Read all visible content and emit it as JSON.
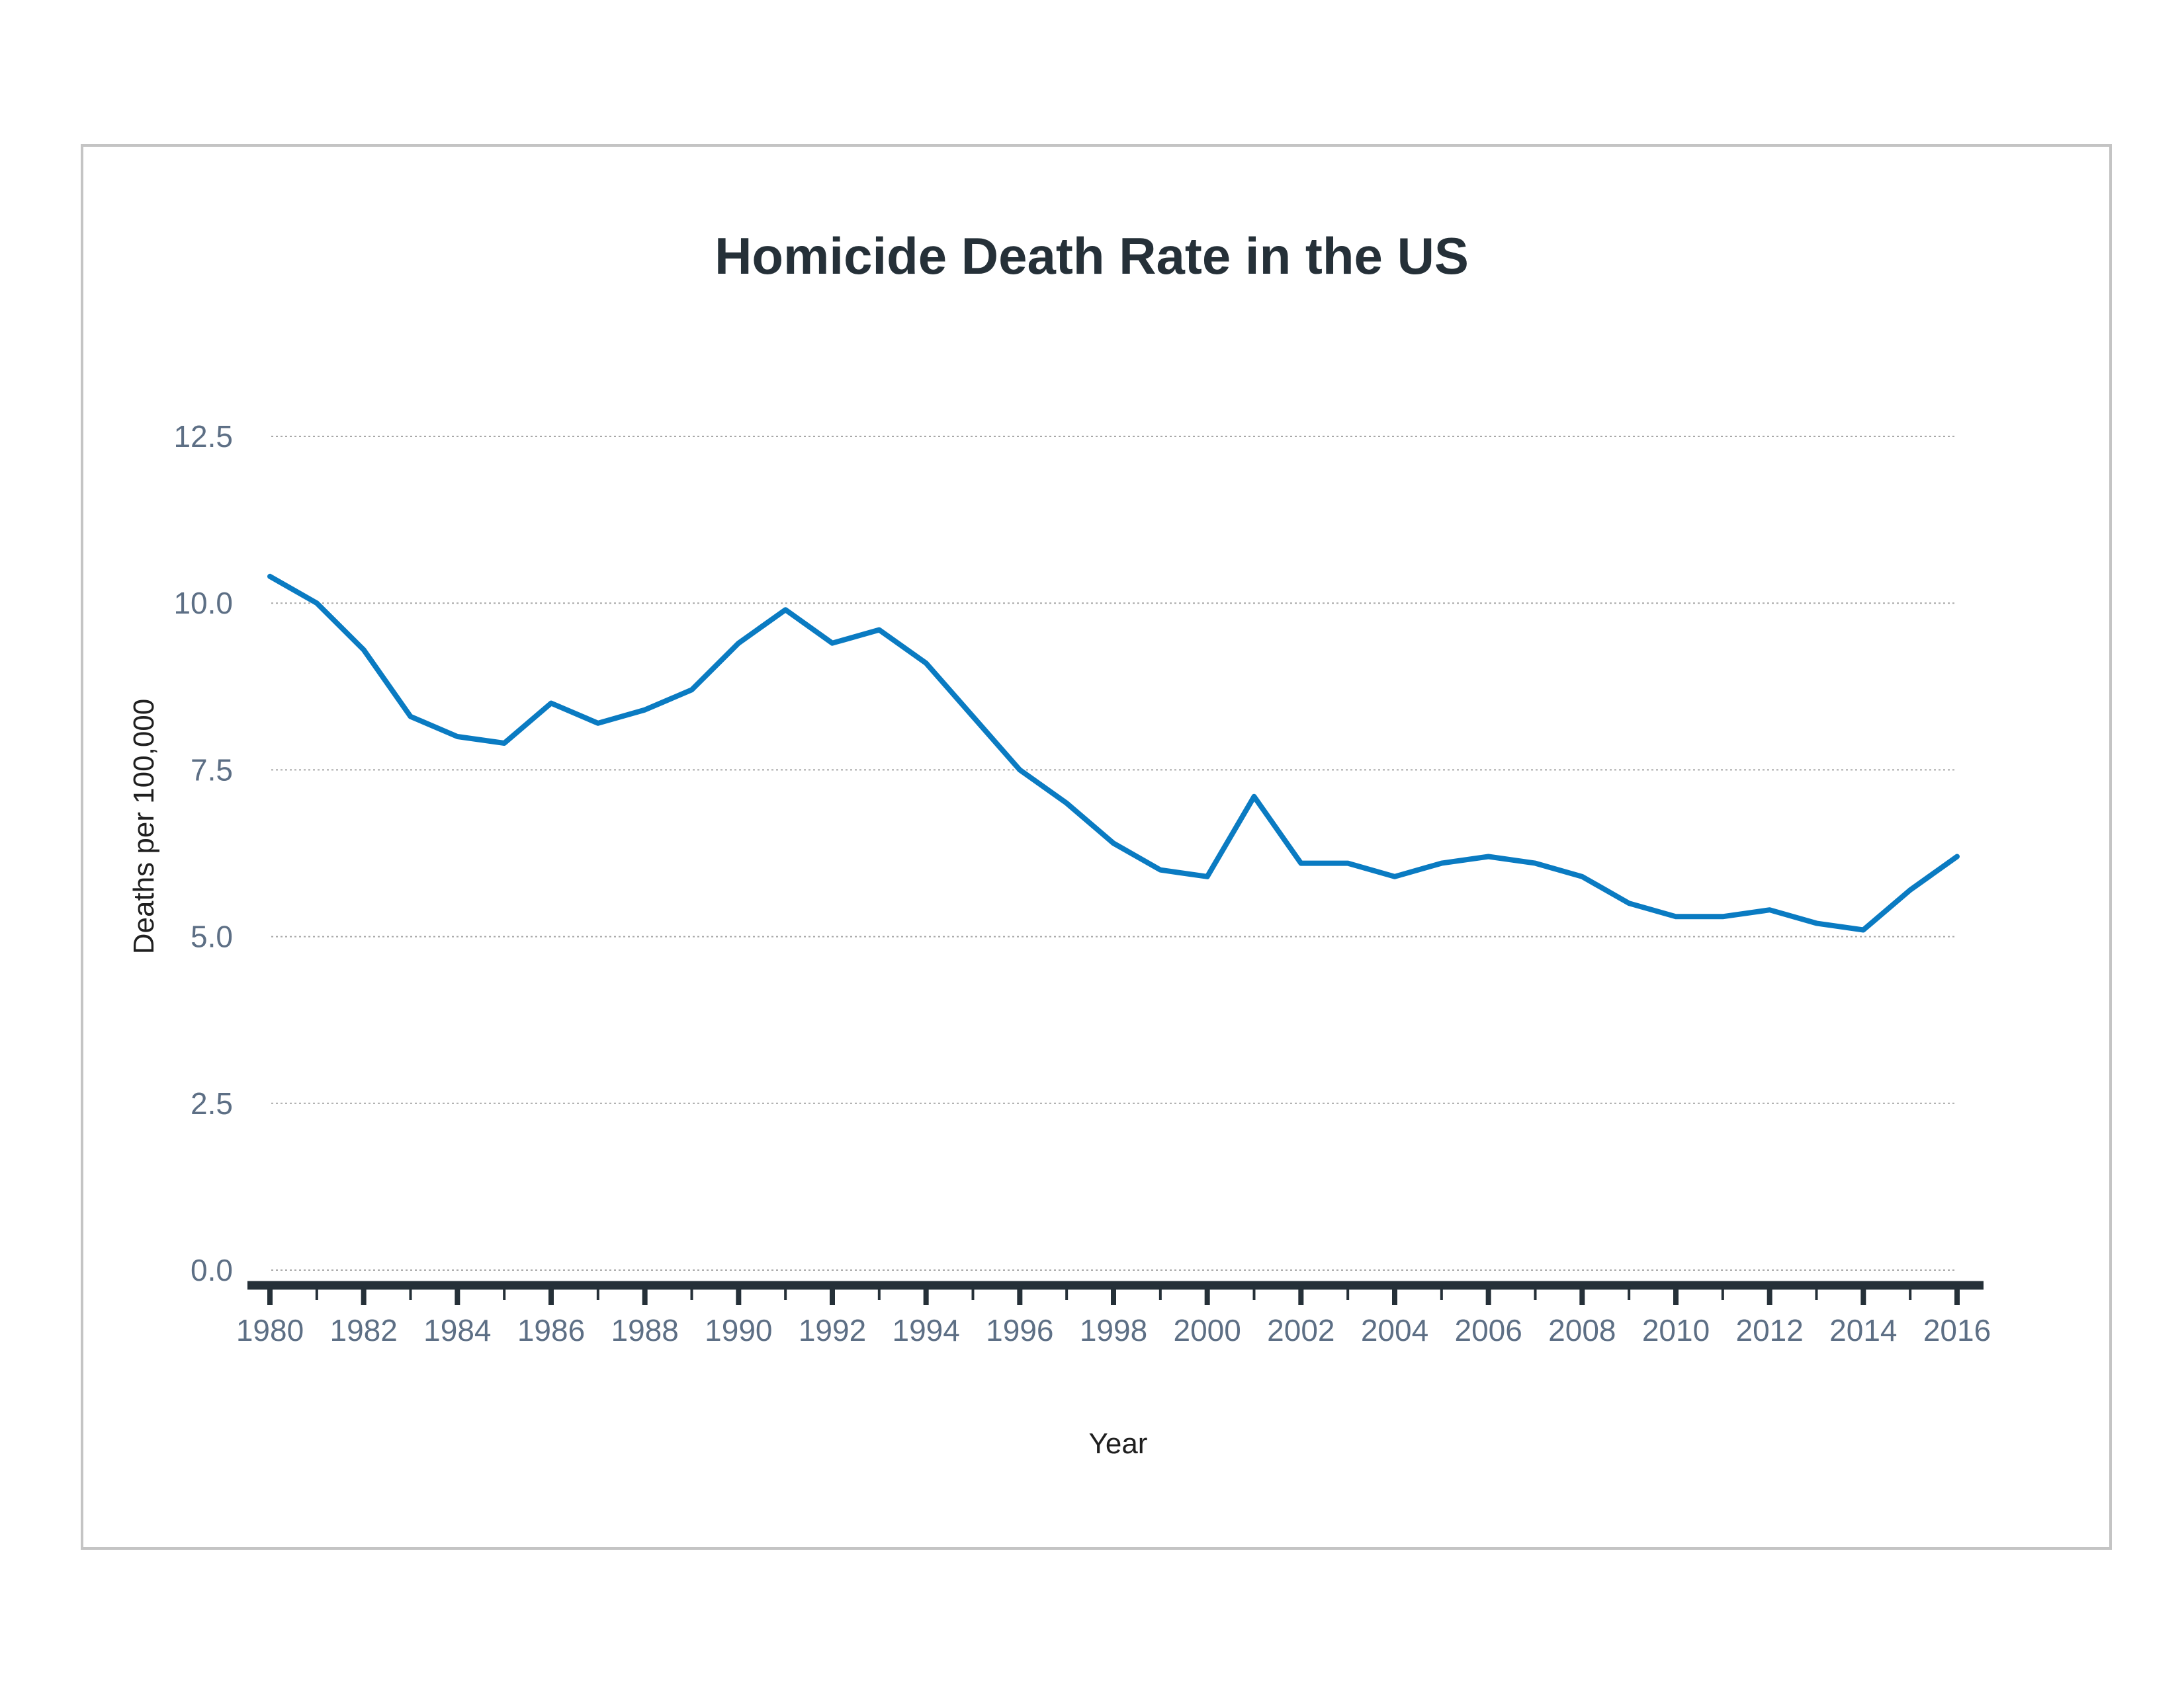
{
  "chart_data": {
    "type": "line",
    "title": "Homicide Death Rate in the US",
    "xlabel": "Year",
    "ylabel": "Deaths per 100,000",
    "ylim": [
      0,
      12.5
    ],
    "yticks": [
      "0.0",
      "2.5",
      "5.0",
      "7.5",
      "10.0",
      "12.5"
    ],
    "xlim": [
      1980,
      2016
    ],
    "xticks": [
      "1980",
      "1982",
      "1984",
      "1986",
      "1988",
      "1990",
      "1992",
      "1994",
      "1996",
      "1998",
      "2000",
      "2002",
      "2004",
      "2006",
      "2008",
      "2010",
      "2012",
      "2014",
      "2016"
    ],
    "grid": true,
    "x": [
      1980,
      1981,
      1982,
      1983,
      1984,
      1985,
      1986,
      1987,
      1988,
      1989,
      1990,
      1991,
      1992,
      1993,
      1994,
      1995,
      1996,
      1997,
      1998,
      1999,
      2000,
      2001,
      2002,
      2003,
      2004,
      2005,
      2006,
      2007,
      2008,
      2009,
      2010,
      2011,
      2012,
      2013,
      2014,
      2015,
      2016
    ],
    "series": [
      {
        "color": "#0a7bc2",
        "values": [
          10.4,
          10.0,
          9.3,
          8.3,
          8.0,
          7.9,
          8.5,
          8.2,
          8.4,
          8.7,
          9.4,
          9.9,
          9.4,
          9.6,
          9.1,
          8.3,
          7.5,
          7.0,
          6.4,
          6.0,
          5.9,
          7.1,
          6.1,
          6.1,
          5.9,
          6.1,
          6.2,
          6.1,
          5.9,
          5.5,
          5.3,
          5.3,
          5.4,
          5.2,
          5.1,
          5.7,
          6.2
        ]
      }
    ],
    "colors": {
      "line": "#0a7bc2",
      "axis": "#253038",
      "tick_label": "#5d6f85",
      "title": "#253038",
      "frame": "#c4c4c4",
      "grid": "#a8a8a8"
    }
  }
}
